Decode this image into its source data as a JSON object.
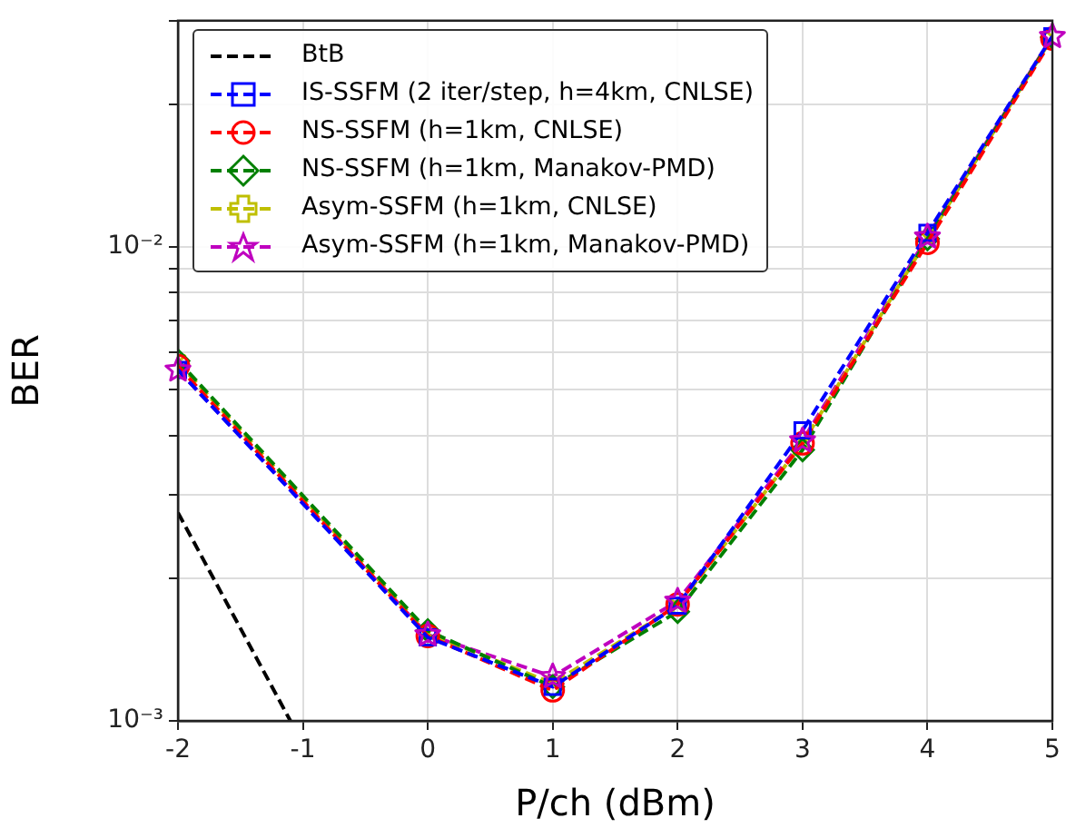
{
  "chart_data": {
    "type": "line",
    "xlabel": "P/ch (dBm)",
    "ylabel": "BER",
    "log": "y",
    "grid": true,
    "legend": "top left",
    "line_style": "dashed",
    "x": [
      -2,
      0,
      1,
      2,
      3,
      4,
      5
    ],
    "xlim": [
      -2,
      5
    ],
    "xticks": [
      -2,
      -1,
      0,
      1,
      2,
      3,
      4,
      5
    ],
    "ylim": [
      0.001,
      0.03
    ],
    "yticks": [
      {
        "value": 0.001,
        "label": "10⁻³"
      },
      {
        "value": 0.002,
        "label": null
      },
      {
        "value": 0.003,
        "label": null
      },
      {
        "value": 0.004,
        "label": null
      },
      {
        "value": 0.005,
        "label": null
      },
      {
        "value": 0.006,
        "label": null
      },
      {
        "value": 0.007,
        "label": null
      },
      {
        "value": 0.008,
        "label": null
      },
      {
        "value": 0.009,
        "label": null
      },
      {
        "value": 0.01,
        "label": "10⁻²"
      },
      {
        "value": 0.02,
        "label": null
      },
      {
        "value": 0.03,
        "label": null
      }
    ],
    "series": [
      {
        "name": "BtB",
        "color": "#000000",
        "marker": "none",
        "x": [
          -2,
          -1.1
        ],
        "values": [
          0.00275,
          0.001
        ]
      },
      {
        "name": "IS-SSFM (2 iter/step, h=4km, CNLSE)",
        "color": "#0000ff",
        "marker": "square",
        "values": [
          0.0055,
          0.0015,
          0.00118,
          0.00175,
          0.0041,
          0.0107,
          0.0278
        ]
      },
      {
        "name": "NS-SSFM (h=1km, CNLSE)",
        "color": "#ff0000",
        "marker": "circle",
        "values": [
          0.0056,
          0.00151,
          0.00116,
          0.00176,
          0.00385,
          0.0102,
          0.0275
        ]
      },
      {
        "name": "NS-SSFM (h=1km, Manakov-PMD)",
        "color": "#008000",
        "marker": "diamond",
        "values": [
          0.00575,
          0.00155,
          0.00118,
          0.0017,
          0.00373,
          0.0104,
          0.0277
        ]
      },
      {
        "name": "Asym-SSFM (h=1km, CNLSE)",
        "color": "#bfbf00",
        "marker": "cross",
        "values": [
          0.0057,
          0.00153,
          0.0012,
          0.00175,
          0.00385,
          0.0104,
          0.0277
        ]
      },
      {
        "name": "Asym-SSFM (h=1km, Manakov-PMD)",
        "color": "#bf00bf",
        "marker": "star",
        "values": [
          0.0055,
          0.00152,
          0.00124,
          0.00179,
          0.0039,
          0.0105,
          0.0278
        ]
      }
    ]
  }
}
